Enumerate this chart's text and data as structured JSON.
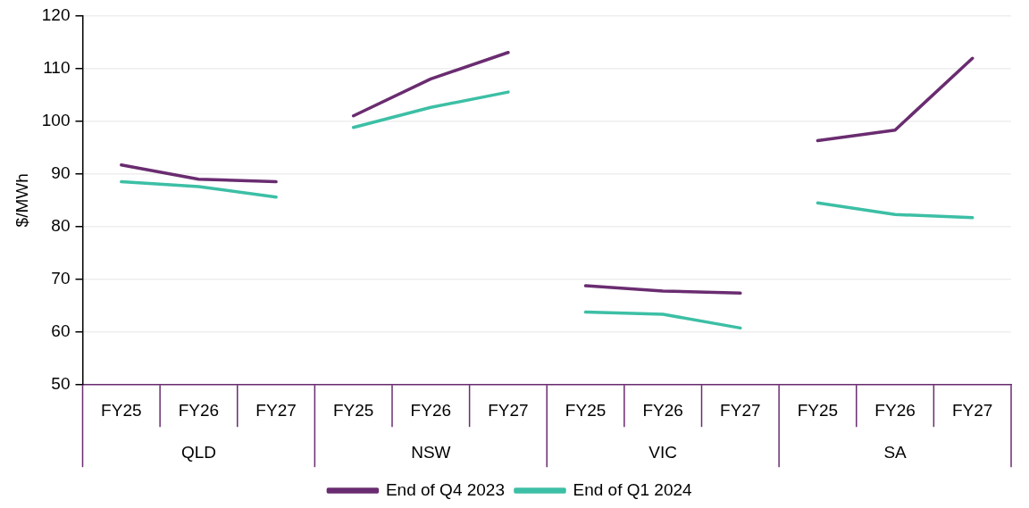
{
  "chart_data": {
    "type": "line",
    "ylabel": "$/MWh",
    "categories": [
      "FY25",
      "FY26",
      "FY27",
      "FY25",
      "FY26",
      "FY27",
      "FY25",
      "FY26",
      "FY27",
      "FY25",
      "FY26",
      "FY27"
    ],
    "annotations": [
      "QLD",
      "NSW",
      "VIC",
      "SA"
    ],
    "series": [
      {
        "name": "End of Q4 2023",
        "color": "#6a2c70",
        "values": [
          91.7,
          89.0,
          88.5,
          101.0,
          108.0,
          113.0,
          68.8,
          67.8,
          67.4,
          96.3,
          98.3,
          111.9
        ]
      },
      {
        "name": "End of Q1 2024",
        "color": "#3cbfa5",
        "values": [
          88.5,
          87.6,
          85.6,
          98.8,
          102.6,
          105.5,
          63.8,
          63.4,
          60.8,
          84.5,
          82.3,
          81.7
        ]
      }
    ],
    "ylim": [
      50,
      120
    ],
    "yticks": [
      50,
      60,
      70,
      80,
      90,
      100,
      110,
      120
    ],
    "grid": "y",
    "legend": "bottom",
    "marker": "none",
    "line_style": "solid"
  }
}
